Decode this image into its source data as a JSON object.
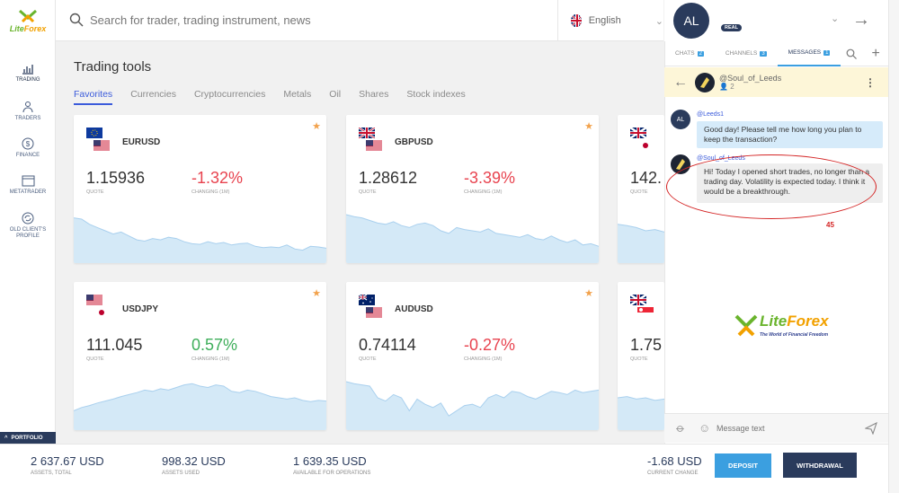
{
  "app": {
    "logo_text_left": "Lite",
    "logo_text_right": "Forex",
    "logo_reg": "®"
  },
  "sidebar": {
    "items": [
      {
        "label": "TRADING",
        "icon": "chart-bars-icon"
      },
      {
        "label": "TRADERS",
        "icon": "traders-icon"
      },
      {
        "label": "FINANCE",
        "icon": "dollar-icon"
      },
      {
        "label": "METATRADER",
        "icon": "window-icon"
      },
      {
        "label": "OLD CLIENT'S PROFILE",
        "icon": "profile-refresh-icon"
      }
    ],
    "portfolio_label": "PORTFOLIO"
  },
  "search": {
    "placeholder": "Search for trader, trading instrument, news"
  },
  "language": {
    "label": "English"
  },
  "main": {
    "title": "Trading tools",
    "tabs": [
      "Favorites",
      "Currencies",
      "Cryptocurrencies",
      "Metals",
      "Oil",
      "Shares",
      "Stock indexes"
    ]
  },
  "cards": [
    {
      "symbol": "EURUSD",
      "quote": "1.15936",
      "quote_label": "QUOTE",
      "change": "-1.32%",
      "change_label": "CHANGING (1M)",
      "trend": "neg",
      "series": [
        0.7,
        0.68,
        0.6,
        0.55,
        0.5,
        0.45,
        0.48,
        0.42,
        0.36,
        0.34,
        0.38,
        0.36,
        0.4,
        0.38,
        0.33,
        0.3,
        0.29,
        0.33,
        0.3,
        0.32,
        0.28,
        0.3,
        0.31,
        0.26,
        0.24,
        0.25,
        0.24,
        0.28,
        0.22,
        0.2,
        0.26,
        0.25,
        0.23
      ]
    },
    {
      "symbol": "GBPUSD",
      "quote": "1.28612",
      "quote_label": "QUOTE",
      "change": "-3.39%",
      "change_label": "CHANGING (1M)",
      "trend": "neg",
      "series": [
        0.75,
        0.72,
        0.7,
        0.66,
        0.62,
        0.6,
        0.64,
        0.58,
        0.55,
        0.6,
        0.62,
        0.58,
        0.5,
        0.46,
        0.55,
        0.52,
        0.5,
        0.48,
        0.53,
        0.46,
        0.44,
        0.42,
        0.4,
        0.44,
        0.38,
        0.36,
        0.42,
        0.36,
        0.32,
        0.36,
        0.28,
        0.3,
        0.26
      ]
    },
    {
      "symbol": "GBPJPY",
      "quote": "142.",
      "quote_label": "QUOTE",
      "change": "",
      "change_label": "",
      "trend": "neg",
      "series": [
        0.6,
        0.58,
        0.55,
        0.5,
        0.52,
        0.48
      ]
    },
    {
      "symbol": "USDJPY",
      "quote": "111.045",
      "quote_label": "QUOTE",
      "change": "0.57%",
      "change_label": "CHANGING (1M)",
      "trend": "pos",
      "series": [
        0.3,
        0.35,
        0.38,
        0.42,
        0.45,
        0.48,
        0.52,
        0.55,
        0.58,
        0.62,
        0.6,
        0.64,
        0.62,
        0.66,
        0.7,
        0.72,
        0.68,
        0.66,
        0.7,
        0.68,
        0.6,
        0.58,
        0.62,
        0.6,
        0.56,
        0.52,
        0.5,
        0.48,
        0.5,
        0.46,
        0.44,
        0.46,
        0.45
      ]
    },
    {
      "symbol": "AUDUSD",
      "quote": "0.74114",
      "quote_label": "QUOTE",
      "change": "-0.27%",
      "change_label": "CHANGING (1M)",
      "trend": "neg",
      "series": [
        0.75,
        0.72,
        0.7,
        0.68,
        0.5,
        0.45,
        0.55,
        0.5,
        0.3,
        0.48,
        0.4,
        0.35,
        0.42,
        0.22,
        0.3,
        0.38,
        0.4,
        0.35,
        0.5,
        0.55,
        0.5,
        0.6,
        0.58,
        0.52,
        0.48,
        0.54,
        0.6,
        0.58,
        0.55,
        0.62,
        0.58,
        0.6,
        0.62
      ]
    },
    {
      "symbol": "GBPSGD",
      "quote": "1.75",
      "quote_label": "QUOTE",
      "change": "",
      "change_label": "",
      "trend": "neg",
      "series": [
        0.5,
        0.52,
        0.48,
        0.5,
        0.46,
        0.48
      ]
    }
  ],
  "account": {
    "balances": [
      {
        "value": "2 637.67 USD",
        "label": "ASSETS, TOTAL"
      },
      {
        "value": "998.32 USD",
        "label": "ASSETS USED"
      },
      {
        "value": "1 639.35 USD",
        "label": "AVAILABLE FOR OPERATIONS"
      }
    ],
    "current_change": {
      "value": "-1.68 USD",
      "label": "CURRENT CHANGE"
    },
    "deposit_label": "DEPOSIT",
    "withdrawal_label": "WITHDRAWAL"
  },
  "user": {
    "initials": "AL",
    "badge": "REAL"
  },
  "chat": {
    "tabs": [
      {
        "label": "CHATS",
        "count": "2"
      },
      {
        "label": "CHANNELS",
        "count": "3"
      },
      {
        "label": "MESSAGES",
        "count": "1",
        "active": true
      }
    ],
    "conversation": {
      "name": "@Soul_of_Leeds",
      "members": "2"
    },
    "messages": [
      {
        "sender": "@Leeds1",
        "avatar": "AL",
        "text": "Good day! Please tell me how long you plan to keep the transaction?"
      },
      {
        "sender": "@Soul_of_Leeds",
        "text": "Hi! Today I opened short trades, no longer than a trading day. Volatility is expected today. I think it would be a breakthrough."
      }
    ],
    "annotation": "45",
    "watermark": {
      "brand_left": "Lite",
      "brand_right": "Forex",
      "tagline": "The World of Financial Freedom"
    },
    "input_placeholder": "Message text"
  },
  "colors": {
    "accent": "#3b9fe0",
    "navy": "#2a3b5c",
    "negative": "#e8434f",
    "positive": "#3eae5a",
    "chart_fill": "#d4e9f7",
    "chart_line": "#a9d0ee"
  }
}
